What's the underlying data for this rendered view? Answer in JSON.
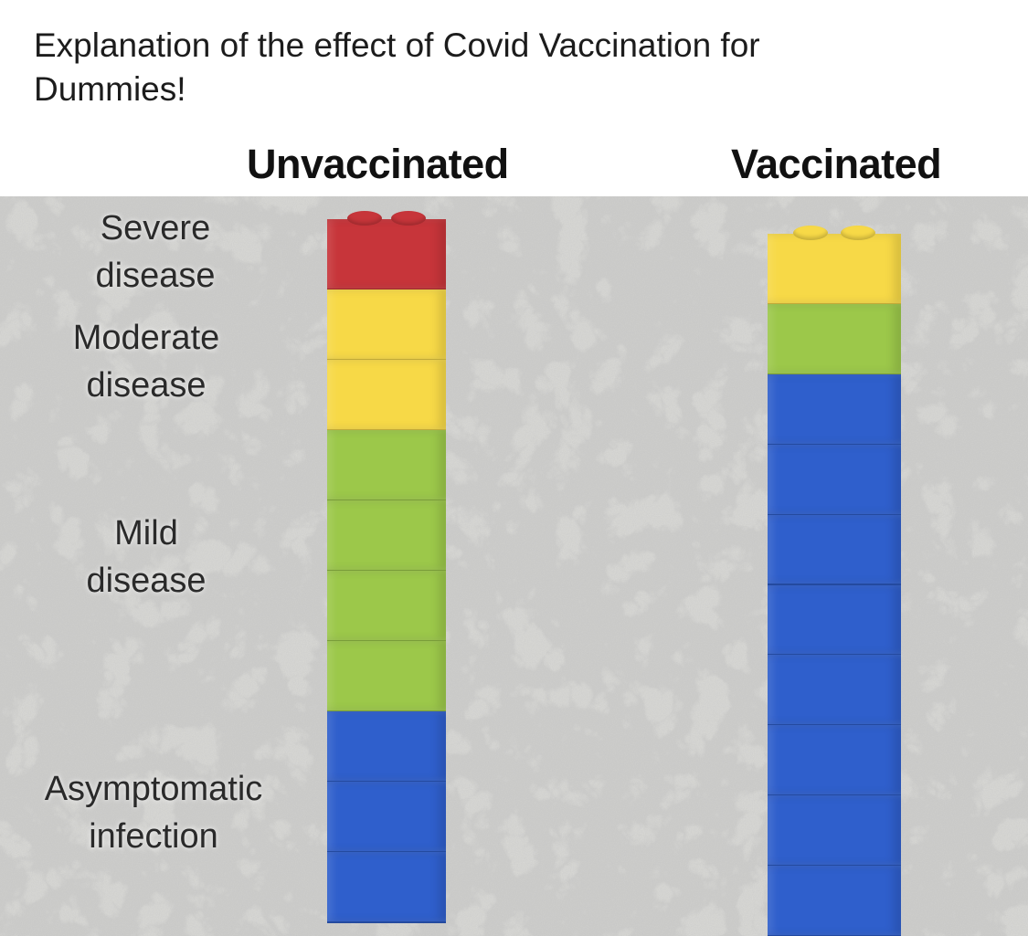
{
  "caption": {
    "line1": "Explanation of the effect of Covid Vaccination for",
    "line2": "Dummies!"
  },
  "columns": {
    "unvaccinated": "Unvaccinated",
    "vaccinated": "Vaccinated"
  },
  "labels": {
    "severe": [
      "Severe",
      "disease"
    ],
    "moderate": [
      "Moderate",
      "disease"
    ],
    "mild": [
      "Mild",
      "disease"
    ],
    "asymptomatic": [
      "Asymptomatic",
      "infection"
    ]
  },
  "colors": {
    "severe": "#c7353a",
    "moderate": "#f7d947",
    "mild": "#9cc84a",
    "asymptomatic": "#2f5fcc",
    "background": "#d9d9d6"
  },
  "towers": {
    "unvaccinated": [
      "severe",
      "moderate",
      "moderate",
      "mild",
      "mild",
      "mild",
      "mild",
      "asymptomatic",
      "asymptomatic",
      "asymptomatic"
    ],
    "vaccinated": [
      "moderate",
      "mild",
      "asymptomatic",
      "asymptomatic",
      "asymptomatic",
      "asymptomatic",
      "asymptomatic",
      "asymptomatic",
      "asymptomatic",
      "asymptomatic"
    ]
  }
}
